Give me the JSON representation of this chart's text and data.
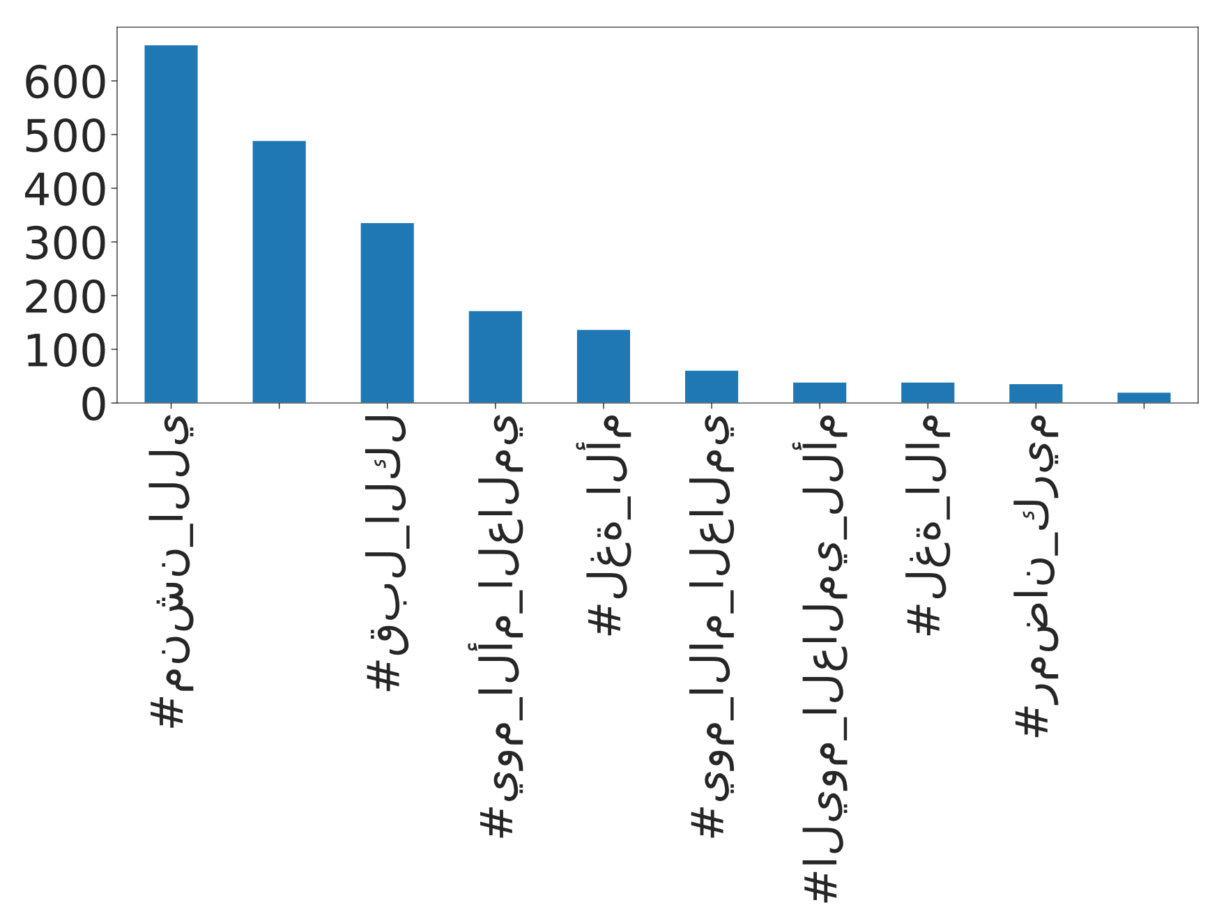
{
  "chart_data": {
    "type": "bar",
    "categories": [
      "#منشن_اللي",
      null,
      "#قبل_الكل",
      "#يوم_الأم_العالمي",
      "#لغة_الأم",
      "#يوم_الام_العالمي",
      "#اليوم_العالمي_للأم",
      "#لغة_الام",
      "#رمضان_كريم",
      null
    ],
    "values": [
      667,
      489,
      336,
      172,
      137,
      61,
      39,
      39,
      36,
      20
    ],
    "color": "#1f77b4",
    "ylim": [
      0,
      700
    ],
    "yticks": [
      0,
      100,
      200,
      300,
      400,
      500,
      600
    ],
    "grid": false,
    "legend": false
  }
}
